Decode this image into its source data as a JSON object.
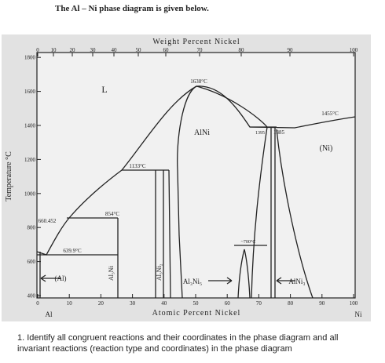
{
  "intro": "The Al – Ni phase diagram is given below.",
  "diagram": {
    "top_axis_title": "Weight Percent Nickel",
    "top_ticks": [
      "0",
      "10",
      "20",
      "30",
      "40",
      "50",
      "60",
      "70",
      "80",
      "90",
      "100"
    ],
    "bottom_axis_title": "Atomic Percent Nickel",
    "bottom_ticks": [
      "0",
      "10",
      "20",
      "30",
      "40",
      "50",
      "60",
      "70",
      "80",
      "90",
      "100"
    ],
    "y_axis_title": "Temperature °C",
    "y_ticks": [
      "400",
      "600",
      "800",
      "1000",
      "1200",
      "1400",
      "1600",
      "1800"
    ],
    "left_element": "Al",
    "right_element": "Ni",
    "labels": [
      "L",
      "1638°C",
      "AlNi",
      "1455°C",
      "1395",
      "1385",
      "(Ni)",
      "1133°C",
      "854°C",
      "660.452",
      "639.9°C",
      "~700°C",
      "(Al)",
      "Al₃Ni",
      "Al₃Ni₂",
      "Al₃Ni₅",
      "AlNi₃"
    ]
  },
  "question": "1.  Identify all congruent reactions and their coordinates in the phase diagram and all invariant reactions (reaction type and coordinates) in the phase diagram"
}
